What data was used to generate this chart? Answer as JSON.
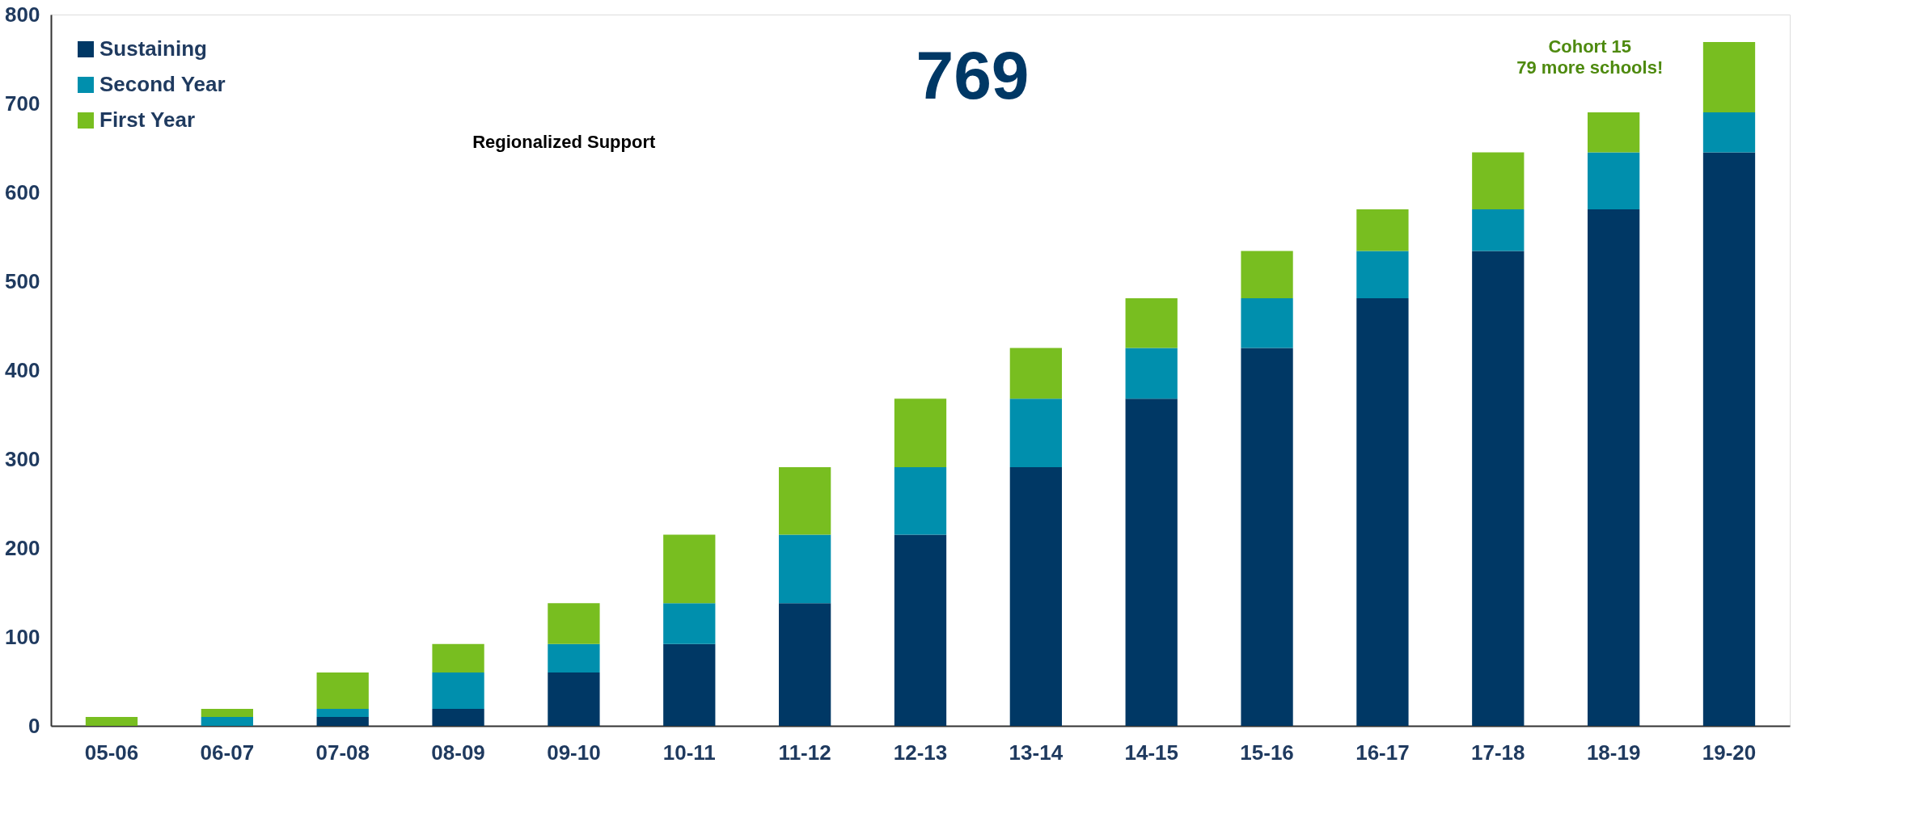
{
  "chart_data": {
    "type": "bar",
    "stacked": true,
    "categories": [
      "05-06",
      "06-07",
      "07-08",
      "08-09",
      "09-10",
      "10-11",
      "11-12",
      "12-13",
      "13-14",
      "14-15",
      "15-16",
      "16-17",
      "17-18",
      "18-19",
      "19-20"
    ],
    "series": [
      {
        "name": "Sustaining",
        "color": "#003865",
        "values": [
          0,
          0,
          10,
          19,
          60,
          92,
          138,
          215,
          291,
          368,
          425,
          481,
          534,
          581,
          645
        ]
      },
      {
        "name": "Second Year",
        "color": "#008fad",
        "values": [
          0,
          10,
          9,
          41,
          32,
          46,
          77,
          76,
          77,
          57,
          56,
          53,
          47,
          64,
          45
        ]
      },
      {
        "name": "First Year",
        "color": "#78be20",
        "values": [
          10,
          9,
          41,
          32,
          46,
          77,
          76,
          77,
          57,
          56,
          53,
          47,
          64,
          45,
          79
        ]
      }
    ],
    "ylim": [
      0,
      800
    ],
    "yticks": [
      0,
      100,
      200,
      300,
      400,
      500,
      600,
      700,
      800
    ],
    "grid": false,
    "legend": "top left",
    "annotations": [
      "769",
      "Regionalized Support",
      "Cohort 15\n79  more schools!"
    ]
  }
}
